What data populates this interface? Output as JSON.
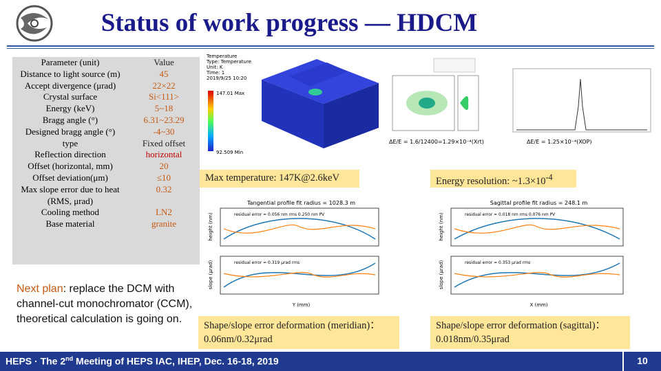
{
  "header": {
    "title": "Status of work progress — HDCM"
  },
  "table": {
    "rows": [
      [
        "Parameter (unit)",
        "Value"
      ],
      [
        "Distance to light source (m)",
        "45"
      ],
      [
        "Accept divergence (μrad)",
        "22×22"
      ],
      [
        "Crystal surface",
        "Si<111>"
      ],
      [
        "Energy (keV)",
        "5~18"
      ],
      [
        "Bragg angle (°)",
        "6.31~23.29"
      ],
      [
        "Designed bragg angle (°)",
        "-4~30"
      ],
      [
        "type",
        "Fixed offset"
      ],
      [
        "Reflection direction",
        "horizontal"
      ],
      [
        "Offset (horizontal, mm)",
        "20"
      ],
      [
        "Offset deviation(μm)",
        "≤10"
      ],
      [
        "Max slope error due to heat (RMS, μrad)",
        "0.32"
      ],
      [
        "Cooling method",
        "LN2"
      ],
      [
        "Base material",
        "granite"
      ]
    ]
  },
  "next_plan": {
    "label": "Next plan",
    "lines": [
      ": replace the DCM with",
      "channel-cut monochromator (CCM),",
      "theoretical calculation is going on."
    ]
  },
  "fea": {
    "legend": [
      "Temperature",
      "Type: Temperature",
      "Unit: K",
      "Time: 1",
      "2019/9/25 10:20"
    ],
    "max": "147.01 Max",
    "min": "92.509 Min"
  },
  "captions": {
    "xrt": "ΔE/E = 1.6/12400=1.29×10⁻⁴(Xrt)",
    "xop": "ΔE/E = 1.25×10⁻⁴(XOP)"
  },
  "boxes": {
    "max_temp": "Max temperature: 147K@2.6keV",
    "energy_res": {
      "text": "Energy resolution: ~1.3×10",
      "sup": "-4"
    },
    "meridian": [
      "Shape/slope error deformation (meridian)：",
      "0.06nm/0.32μrad"
    ],
    "sagittal": [
      "Shape/slope error deformation (sagittal)：",
      "0.018nm/0.35μrad"
    ]
  },
  "plots": {
    "left": {
      "title": "Tangential profile fit radius = 1028.3 m",
      "height_label": "height (nm)",
      "slope_label": "slope (μrad)",
      "x_label": "Y (mm)",
      "legend1": "residual error = 0.056 nm rms 0.250 nm PV",
      "legend2": "residual error = 0.319 μrad rms"
    },
    "right": {
      "title": "Sagittal profile fit radius = 248.1 m",
      "height_label": "height (nm)",
      "slope_label": "slope (μrad)",
      "x_label": "X (mm)",
      "legend1": "residual error = 0.018 nm rms 0.076 nm PV",
      "legend2": "residual error = 0.353 μrad rms"
    }
  },
  "footer": {
    "before": "HEPS · The 2",
    "sup": "nd",
    "after": " Meeting of HEPS IAC, IHEP, Dec. 16-18, 2019",
    "page": "10"
  }
}
